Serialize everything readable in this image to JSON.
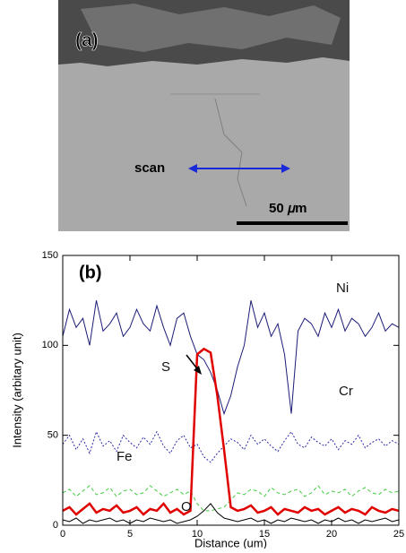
{
  "image": {
    "panel_label": "(a)",
    "scan_label": "scan",
    "scale_label": "50 𝜇m"
  },
  "chart_data": {
    "type": "line",
    "x_label": "Distance (um)",
    "y_label": "Intensity (arbitary unit)",
    "annotations": [
      "(b)"
    ],
    "xlim": [
      0,
      25
    ],
    "xticks": [
      0,
      5,
      10,
      15,
      20,
      25
    ],
    "ylim": [
      0,
      150
    ],
    "yticks": [
      0,
      50,
      100,
      150
    ],
    "x": [
      0,
      0.5,
      1,
      1.5,
      2,
      2.5,
      3,
      3.5,
      4,
      4.5,
      5,
      5.5,
      6,
      6.5,
      7,
      7.5,
      8,
      8.5,
      9,
      9.5,
      10,
      10.5,
      11,
      11.5,
      12,
      12.5,
      13,
      13.5,
      14,
      14.5,
      15,
      15.5,
      16,
      16.5,
      17,
      17.5,
      18,
      18.5,
      19,
      19.5,
      20,
      20.5,
      21,
      21.5,
      22,
      22.5,
      23,
      23.5,
      24,
      24.5,
      25
    ],
    "series": [
      {
        "name": "Ni",
        "color": "#1c1c78",
        "line_style": "solid",
        "values": [
          105,
          120,
          110,
          115,
          100,
          125,
          108,
          112,
          118,
          105,
          110,
          120,
          112,
          108,
          122,
          110,
          100,
          115,
          118,
          105,
          95,
          92,
          85,
          75,
          62,
          72,
          88,
          100,
          125,
          110,
          118,
          105,
          112,
          95,
          62,
          108,
          115,
          112,
          105,
          118,
          110,
          120,
          108,
          115,
          112,
          105,
          110,
          118,
          108,
          112,
          110
        ]
      },
      {
        "name": "Cr",
        "color": "#2a2aa8",
        "line_style": "dotted",
        "values": [
          45,
          50,
          42,
          48,
          40,
          52,
          44,
          47,
          41,
          50,
          46,
          43,
          49,
          45,
          52,
          44,
          40,
          47,
          50,
          43,
          45,
          38,
          35,
          40,
          44,
          48,
          46,
          42,
          50,
          45,
          48,
          44,
          41,
          47,
          52,
          45,
          43,
          49,
          46,
          44,
          48,
          42,
          47,
          45,
          50,
          43,
          46,
          48,
          44,
          47,
          45
        ]
      },
      {
        "name": "Fe",
        "color": "#44cc44",
        "line_style": "dashed",
        "values": [
          18,
          20,
          16,
          19,
          22,
          17,
          18,
          21,
          16,
          19,
          20,
          17,
          18,
          22,
          19,
          16,
          18,
          20,
          17,
          19,
          12,
          8,
          8,
          9,
          10,
          14,
          18,
          17,
          20,
          19,
          16,
          21,
          18,
          17,
          19,
          20,
          16,
          18,
          22,
          17,
          19,
          18,
          20,
          16,
          19,
          21,
          18,
          17,
          20,
          18,
          19
        ]
      },
      {
        "name": "S",
        "color": "#e00000",
        "line_style": "solid",
        "values": [
          8,
          10,
          6,
          9,
          12,
          7,
          9,
          8,
          11,
          7,
          8,
          10,
          6,
          9,
          8,
          12,
          7,
          9,
          6,
          8,
          95,
          98,
          96,
          72,
          42,
          10,
          8,
          9,
          11,
          7,
          8,
          10,
          6,
          9,
          8,
          7,
          10,
          8,
          9,
          6,
          8,
          10,
          7,
          9,
          8,
          6,
          10,
          8,
          7,
          9,
          8
        ]
      },
      {
        "name": "O",
        "color": "#000000",
        "line_style": "solid",
        "values": [
          3,
          2,
          4,
          1,
          3,
          2,
          3,
          4,
          2,
          3,
          1,
          3,
          2,
          4,
          3,
          2,
          3,
          1,
          2,
          3,
          5,
          8,
          12,
          7,
          4,
          3,
          2,
          3,
          4,
          2,
          3,
          1,
          3,
          2,
          4,
          3,
          2,
          3,
          1,
          3,
          2,
          4,
          2,
          3,
          1,
          3,
          2,
          3,
          4,
          2,
          3
        ]
      }
    ]
  }
}
